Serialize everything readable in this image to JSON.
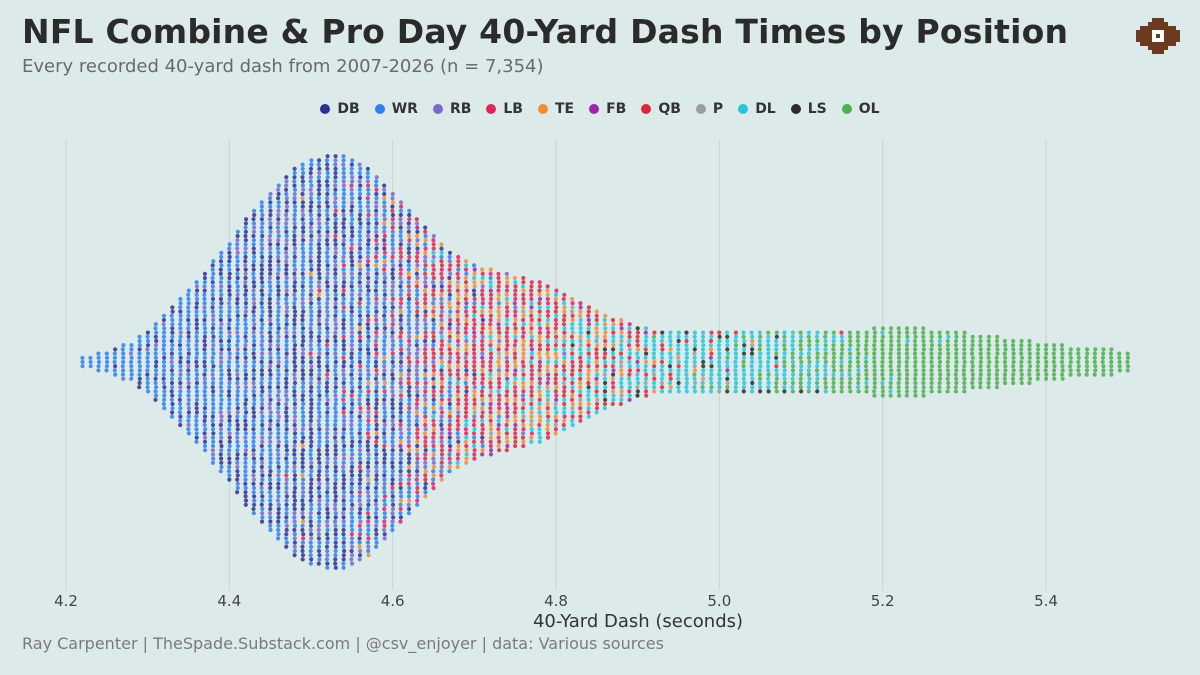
{
  "header": {
    "title": "NFL Combine & Pro Day 40-Yard Dash Times by Position",
    "subtitle": "Every recorded 40-yard dash from 2007-2026 (n = 7,354)"
  },
  "footer": {
    "credits": "Ray Carpenter | TheSpade.Substack.com | @csv_enjoyer | data: Various sources"
  },
  "logo": {
    "icon": "spade-logo-icon",
    "color": "#6b3a1f"
  },
  "colors": {
    "background": "#ddeaea",
    "gridline": "#c9d4d4"
  },
  "chart_data": {
    "type": "beeswarm",
    "title": "NFL Combine & Pro Day 40-Yard Dash Times by Position",
    "subtitle": "Every recorded 40-yard dash from 2007-2026 (n = 7,354)",
    "xlabel": "40-Yard Dash (seconds)",
    "ylabel": "",
    "xlim": [
      4.2,
      5.5
    ],
    "xticks": [
      4.2,
      4.4,
      4.6,
      4.8,
      5.0,
      5.2,
      5.4
    ],
    "xtick_labels": [
      "4.2",
      "4.4",
      "4.6",
      "4.8",
      "5.0",
      "5.2",
      "5.4"
    ],
    "grid": true,
    "legend_position": "top-center",
    "total_n": 7354,
    "bin_width": 0.01,
    "bin_counts": {
      "x": [
        4.22,
        4.23,
        4.24,
        4.25,
        4.26,
        4.27,
        4.28,
        4.29,
        4.3,
        4.31,
        4.32,
        4.33,
        4.34,
        4.35,
        4.36,
        4.37,
        4.38,
        4.39,
        4.4,
        4.41,
        4.42,
        4.43,
        4.44,
        4.45,
        4.46,
        4.47,
        4.48,
        4.49,
        4.5,
        4.51,
        4.52,
        4.53,
        4.54,
        4.55,
        4.56,
        4.57,
        4.58,
        4.59,
        4.6,
        4.61,
        4.62,
        4.63,
        4.64,
        4.65,
        4.66,
        4.67,
        4.68,
        4.69,
        4.7,
        4.71,
        4.72,
        4.73,
        4.74,
        4.75,
        4.76,
        4.77,
        4.78,
        4.79,
        4.8,
        4.81,
        4.82,
        4.83,
        4.84,
        4.85,
        4.86,
        4.87,
        4.88,
        4.89,
        4.9,
        4.91,
        4.92,
        4.93,
        4.94,
        4.95,
        4.96,
        4.97,
        4.98,
        4.99,
        5.0,
        5.01,
        5.02,
        5.03,
        5.04,
        5.05,
        5.06,
        5.07,
        5.08,
        5.09,
        5.1,
        5.11,
        5.12,
        5.13,
        5.14,
        5.15,
        5.16,
        5.17,
        5.18,
        5.19,
        5.2,
        5.21,
        5.22,
        5.23,
        5.24,
        5.25,
        5.26,
        5.27,
        5.28,
        5.29,
        5.3,
        5.31,
        5.32,
        5.33,
        5.34,
        5.35,
        5.36,
        5.37,
        5.38,
        5.39,
        5.4,
        5.41,
        5.42,
        5.43,
        5.44,
        5.45,
        5.46,
        5.47,
        5.48,
        5.49,
        5.5
      ],
      "half_height_dots": [
        1,
        1,
        2,
        2,
        3,
        4,
        4,
        6,
        7,
        9,
        11,
        13,
        15,
        17,
        19,
        21,
        24,
        26,
        28,
        31,
        34,
        36,
        38,
        40,
        42,
        44,
        46,
        47,
        48,
        48,
        49,
        49,
        49,
        48,
        47,
        46,
        44,
        42,
        40,
        38,
        36,
        34,
        32,
        30,
        28,
        26,
        25,
        24,
        23,
        22,
        22,
        21,
        21,
        20,
        20,
        19,
        19,
        18,
        17,
        16,
        15,
        14,
        13,
        12,
        11,
        10,
        10,
        9,
        8,
        8,
        7,
        7,
        7,
        7,
        7,
        7,
        7,
        7,
        7,
        7,
        7,
        7,
        7,
        7,
        7,
        7,
        7,
        7,
        7,
        7,
        7,
        7,
        7,
        7,
        7,
        7,
        7,
        8,
        8,
        8,
        8,
        8,
        8,
        8,
        7,
        7,
        7,
        7,
        7,
        6,
        6,
        6,
        6,
        5,
        5,
        5,
        5,
        4,
        4,
        4,
        4,
        3,
        3,
        3,
        3,
        3,
        3,
        2,
        2
      ]
    },
    "series": [
      {
        "name": "DB",
        "color": "#2e3192",
        "center": 4.52,
        "spread": 0.07
      },
      {
        "name": "WR",
        "color": "#2f80ed",
        "center": 4.52,
        "spread": 0.08
      },
      {
        "name": "RB",
        "color": "#7b68c9",
        "center": 4.56,
        "spread": 0.08
      },
      {
        "name": "LB",
        "color": "#e0245e",
        "center": 4.7,
        "spread": 0.09
      },
      {
        "name": "TE",
        "color": "#f28c38",
        "center": 4.76,
        "spread": 0.09
      },
      {
        "name": "FB",
        "color": "#9b27af",
        "center": 4.8,
        "spread": 0.09
      },
      {
        "name": "QB",
        "color": "#d9283a",
        "center": 4.8,
        "spread": 0.1
      },
      {
        "name": "P",
        "color": "#9e9e9e",
        "center": 4.85,
        "spread": 0.1
      },
      {
        "name": "DL",
        "color": "#26c6da",
        "center": 4.95,
        "spread": 0.12
      },
      {
        "name": "LS",
        "color": "#2b2b2b",
        "center": 4.95,
        "spread": 0.1
      },
      {
        "name": "OL",
        "color": "#4caf50",
        "center": 5.25,
        "spread": 0.1
      }
    ]
  }
}
